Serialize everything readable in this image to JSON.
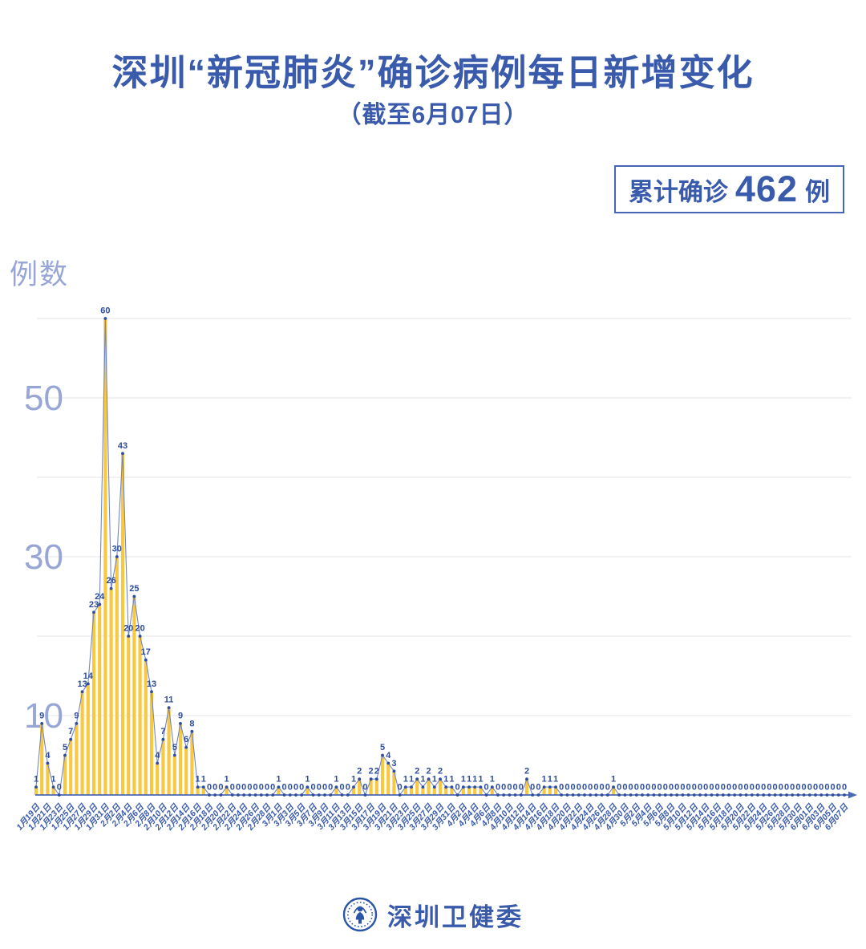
{
  "header": {
    "title": "深圳“新冠肺炎”确诊病例每日新增变化",
    "subtitle": "（截至6月07日）"
  },
  "badge": {
    "prefix": "累计确诊",
    "value": "462",
    "suffix": "例"
  },
  "footer": {
    "org_name": "深圳卫健委",
    "logo": "shenzhen-health-commission-emblem"
  },
  "colors": {
    "title_blue": "#3A5BAB",
    "label_blue": "#2E4D9E",
    "bar_yellow": "#F9C841",
    "line_blue": "#7287C2",
    "marker_blue": "#2E4D9E",
    "grid_gray": "#E9EBEE",
    "axis_blue": "#4A68B4",
    "ytick_periwinkle": "#97A6D6",
    "badge_border": "#4466B4"
  },
  "chart_data": {
    "type": "bar",
    "overlay": "line-with-markers",
    "title": "深圳“新冠肺炎”确诊病例每日新增变化",
    "subtitle": "（截至6月07日）",
    "xlabel": "",
    "ylabel": "例数",
    "ylim": [
      0,
      60
    ],
    "gridline_step": 10,
    "ytick_labels": [
      10,
      30,
      50
    ],
    "legend": "none",
    "x_tick_interval_days": 2,
    "start_date_label": "1月19日",
    "end_date_label": "6月07日",
    "cumulative_total": 462,
    "x_labels": [
      "1月19日",
      "1月21日",
      "1月23日",
      "1月25日",
      "1月27日",
      "1月29日",
      "1月31日",
      "2月2日",
      "2月4日",
      "2月6日",
      "2月8日",
      "2月10日",
      "2月12日",
      "2月14日",
      "2月16日",
      "2月18日",
      "2月20日",
      "2月22日",
      "2月24日",
      "2月26日",
      "2月28日",
      "3月1日",
      "3月3日",
      "3月5日",
      "3月7日",
      "3月9日",
      "3月11日",
      "3月13日",
      "3月15日",
      "3月17日",
      "3月19日",
      "3月21日",
      "3月23日",
      "3月25日",
      "3月27日",
      "3月29日",
      "3月31日",
      "4月2日",
      "4月4日",
      "4月6日",
      "4月8日",
      "4月10日",
      "4月12日",
      "4月14日",
      "4月16日",
      "4月18日",
      "4月20日",
      "4月22日",
      "4月24日",
      "4月26日",
      "4月28日",
      "4月30日",
      "5月2日",
      "5月4日",
      "5月6日",
      "5月8日",
      "5月10日",
      "5月12日",
      "5月14日",
      "5月16日",
      "5月18日",
      "5月20日",
      "5月22日",
      "5月24日",
      "5月26日",
      "5月28日",
      "5月30日",
      "6月01日",
      "6月03日",
      "6月05日",
      "6月07日"
    ],
    "values": [
      1,
      9,
      4,
      1,
      0,
      5,
      7,
      9,
      13,
      14,
      23,
      24,
      60,
      26,
      30,
      43,
      20,
      25,
      20,
      17,
      13,
      4,
      7,
      11,
      5,
      9,
      6,
      8,
      1,
      1,
      0,
      0,
      0,
      1,
      0,
      0,
      0,
      0,
      0,
      0,
      0,
      0,
      1,
      0,
      0,
      0,
      0,
      1,
      0,
      0,
      0,
      0,
      1,
      0,
      0,
      1,
      2,
      0,
      2,
      2,
      5,
      4,
      3,
      0,
      1,
      1,
      2,
      1,
      2,
      1,
      2,
      1,
      1,
      0,
      1,
      1,
      1,
      1,
      0,
      1,
      0,
      0,
      0,
      0,
      0,
      2,
      0,
      0,
      1,
      1,
      1,
      0,
      0,
      0,
      0,
      0,
      0,
      0,
      0,
      0,
      1,
      0,
      0,
      0,
      0,
      0,
      0,
      0,
      0,
      0,
      0,
      0,
      0,
      0,
      0,
      0,
      0,
      0,
      0,
      0,
      0,
      0,
      0,
      0,
      0,
      0,
      0,
      0,
      0,
      0,
      0,
      0,
      0,
      0,
      0,
      0,
      0,
      0,
      0,
      0,
      0
    ]
  }
}
